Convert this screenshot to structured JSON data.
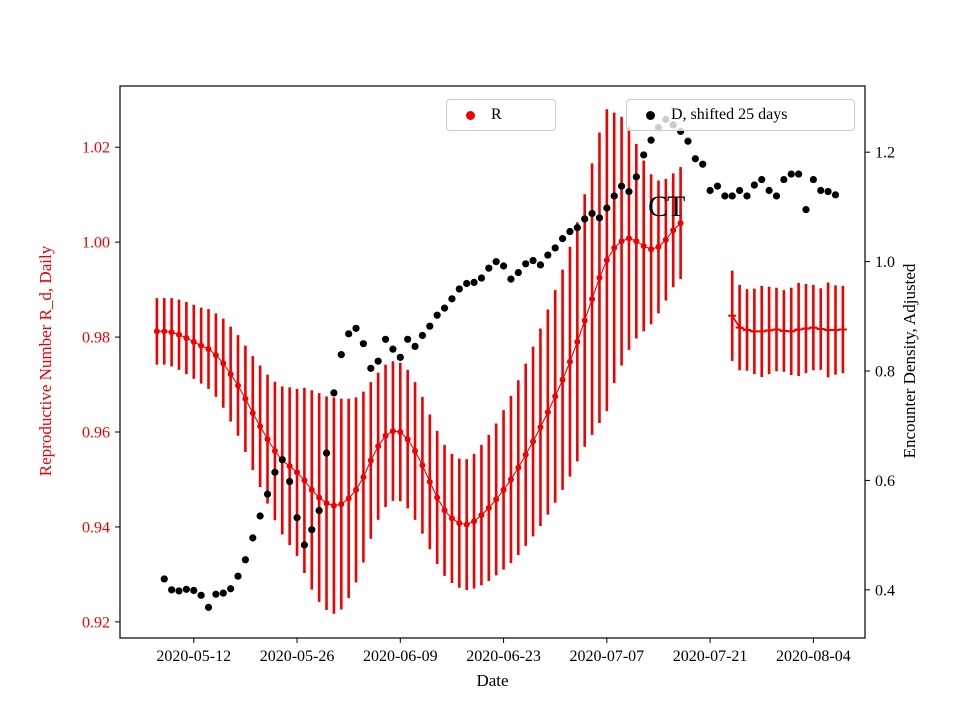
{
  "chart_data": {
    "type": "scatter",
    "title": "",
    "xlabel": "Date",
    "ylabel_left": "Reproductive Number R_d, Daily",
    "ylabel_right": "Encounter Density, Adjusted",
    "grid": false,
    "legend_locations": [
      "upper center",
      "upper right"
    ],
    "legend": [
      {
        "label": "R",
        "marker": "red-dot",
        "color": "#f20000"
      },
      {
        "label": "D, shifted 25 days",
        "marker": "black-dot",
        "color": "#000000"
      }
    ],
    "annotation": {
      "text": "CT",
      "x": "2020-07-16",
      "y_left": 1.007
    },
    "x_ticks": [
      "2020-05-12",
      "2020-05-26",
      "2020-06-09",
      "2020-06-23",
      "2020-07-07",
      "2020-07-21",
      "2020-08-04"
    ],
    "y_ticks_left": [
      0.92,
      0.94,
      0.96,
      0.98,
      1.0,
      1.02
    ],
    "y_ticks_right": [
      0.4,
      0.6,
      0.8,
      1.0,
      1.2
    ],
    "xlim": [
      "2020-05-02",
      "2020-08-11"
    ],
    "ylim_left": [
      0.9166,
      1.0329
    ],
    "ylim_right": [
      0.312,
      1.321
    ],
    "series": [
      {
        "name": "R",
        "type": "errorbar",
        "axis": "left",
        "color": "#f20000",
        "marker": "circle",
        "freq": "daily",
        "start": "2020-05-07",
        "values": [
          0.9812,
          0.9812,
          0.981,
          0.9805,
          0.9798,
          0.979,
          0.9782,
          0.9775,
          0.9762,
          0.9745,
          0.9722,
          0.9698,
          0.967,
          0.964,
          0.9612,
          0.9585,
          0.956,
          0.954,
          0.9528,
          0.9515,
          0.9498,
          0.9478,
          0.9462,
          0.945,
          0.9445,
          0.9448,
          0.946,
          0.9478,
          0.9505,
          0.954,
          0.957,
          0.9592,
          0.9602,
          0.96,
          0.9585,
          0.956,
          0.953,
          0.9495,
          0.9462,
          0.9435,
          0.9418,
          0.9408,
          0.9405,
          0.9412,
          0.9425,
          0.944,
          0.9458,
          0.9478,
          0.95,
          0.9525,
          0.9552,
          0.958,
          0.961,
          0.9642,
          0.9675,
          0.971,
          0.9748,
          0.979,
          0.9835,
          0.988,
          0.9925,
          0.9962,
          0.9988,
          1.0002,
          1.0008,
          1.0002,
          0.9992,
          0.9985,
          0.999,
          1.0005,
          1.0025,
          1.004
        ],
        "err": [
          0.007,
          0.007,
          0.0072,
          0.0074,
          0.0076,
          0.0078,
          0.008,
          0.0084,
          0.0088,
          0.0094,
          0.01,
          0.0106,
          0.0112,
          0.012,
          0.0128,
          0.0136,
          0.0146,
          0.0156,
          0.0166,
          0.0176,
          0.0195,
          0.021,
          0.022,
          0.0225,
          0.0228,
          0.0222,
          0.021,
          0.0195,
          0.018,
          0.0165,
          0.0155,
          0.015,
          0.0147,
          0.0146,
          0.0146,
          0.0145,
          0.0144,
          0.0142,
          0.014,
          0.0138,
          0.0136,
          0.0136,
          0.0138,
          0.0142,
          0.0148,
          0.0154,
          0.016,
          0.0168,
          0.0176,
          0.0184,
          0.0192,
          0.02,
          0.0208,
          0.0216,
          0.0224,
          0.0232,
          0.0242,
          0.0252,
          0.0266,
          0.0286,
          0.0306,
          0.0318,
          0.0285,
          0.0262,
          0.0235,
          0.0205,
          0.018,
          0.0158,
          0.014,
          0.0128,
          0.012,
          0.0118
        ]
      },
      {
        "name": "R (flat right segment)",
        "type": "errorbar",
        "axis": "left",
        "color": "#f20000",
        "marker": "hline",
        "freq": "daily",
        "start": "2020-07-24",
        "values": [
          0.9845,
          0.982,
          0.9815,
          0.9812,
          0.9812,
          0.9814,
          0.9816,
          0.9813,
          0.9812,
          0.9816,
          0.9818,
          0.982,
          0.9817,
          0.9815,
          0.9815,
          0.9816
        ],
        "err": [
          0.0095,
          0.009,
          0.0086,
          0.009,
          0.0096,
          0.0092,
          0.0088,
          0.0086,
          0.0092,
          0.0098,
          0.0094,
          0.009,
          0.0086,
          0.01,
          0.0094,
          0.0092
        ]
      },
      {
        "name": "D, shifted 25 days",
        "type": "scatter",
        "axis": "right",
        "color": "#000000",
        "marker": "circle",
        "freq": "daily",
        "start": "2020-05-08",
        "values": [
          0.42,
          0.4,
          0.398,
          0.401,
          0.399,
          0.39,
          0.368,
          0.392,
          0.394,
          0.402,
          0.425,
          0.455,
          0.495,
          0.535,
          0.575,
          0.615,
          0.638,
          0.598,
          0.532,
          0.482,
          0.51,
          0.545,
          0.65,
          0.76,
          0.83,
          0.868,
          0.878,
          0.85,
          0.805,
          0.818,
          0.858,
          0.84,
          0.825,
          0.858,
          0.845,
          0.865,
          0.882,
          0.902,
          0.915,
          0.932,
          0.95,
          0.96,
          0.962,
          0.97,
          0.988,
          1.0,
          0.992,
          0.968,
          0.98,
          0.996,
          1.002,
          0.994,
          1.012,
          1.025,
          1.042,
          1.055,
          1.062,
          1.078,
          1.088,
          1.08,
          1.098,
          1.12,
          1.138,
          1.128,
          1.155,
          1.195,
          1.222,
          1.245,
          1.26,
          1.25,
          1.238,
          1.22,
          1.188,
          1.178,
          1.13,
          1.138,
          1.12,
          1.12,
          1.13,
          1.12,
          1.14,
          1.15,
          1.13,
          1.12,
          1.15,
          1.16,
          1.16,
          1.095,
          1.15,
          1.13,
          1.128,
          1.122
        ]
      }
    ]
  }
}
